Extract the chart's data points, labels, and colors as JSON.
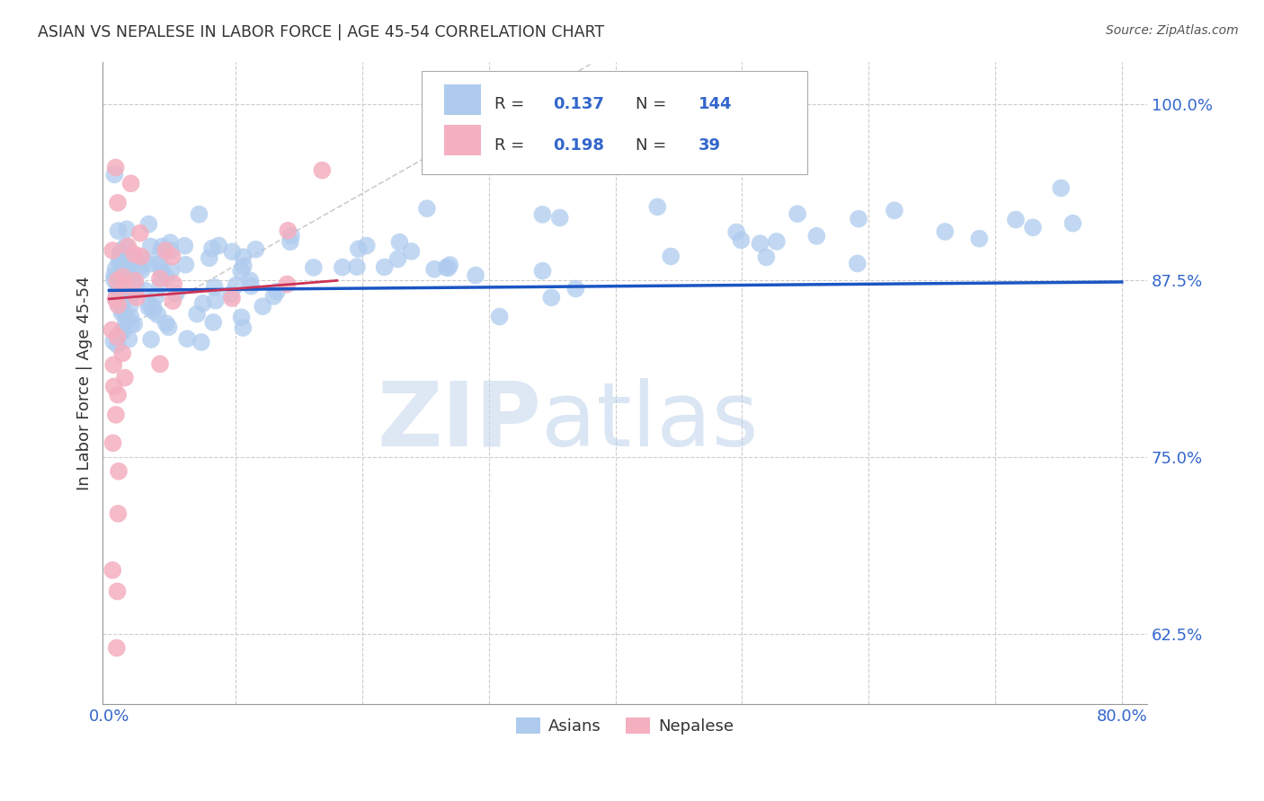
{
  "title": "ASIAN VS NEPALESE IN LABOR FORCE | AGE 45-54 CORRELATION CHART",
  "source": "Source: ZipAtlas.com",
  "ylabel_label": "In Labor Force | Age 45-54",
  "y_tick_labels": [
    "62.5%",
    "75.0%",
    "87.5%",
    "100.0%"
  ],
  "xlim": [
    -0.005,
    0.82
  ],
  "ylim": [
    0.575,
    1.03
  ],
  "y_ticks": [
    0.625,
    0.75,
    0.875,
    1.0
  ],
  "x_ticks": [
    0.0,
    0.1,
    0.2,
    0.3,
    0.4,
    0.5,
    0.6,
    0.7,
    0.8
  ],
  "watermark_zip": "ZIP",
  "watermark_atlas": "atlas",
  "asian_color": "#aecbee",
  "nepalese_color": "#f4afc0",
  "asian_line_color": "#1a56c4",
  "nepalese_line_color": "#cc3355",
  "diagonal_color": "#cccccc",
  "background_color": "#ffffff",
  "grid_color": "#cccccc",
  "title_color": "#333333",
  "axis_color": "#3366cc",
  "R_asian": "0.137",
  "N_asian": "144",
  "R_nepalese": "0.198",
  "N_nepalese": "39"
}
